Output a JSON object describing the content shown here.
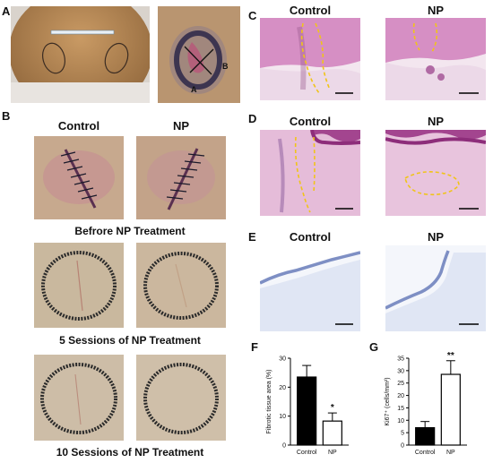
{
  "panels": {
    "A": {
      "letter": "A",
      "inset_labels": {
        "a": "A",
        "b": "B"
      }
    },
    "B": {
      "letter": "B",
      "col_control": "Control",
      "col_np": "NP",
      "row_captions": [
        "Befrore NP Treatment",
        "5 Sessions of NP Treatment",
        "10 Sessions of NP Treatment"
      ]
    },
    "C": {
      "letter": "C",
      "col_control": "Control",
      "col_np": "NP"
    },
    "D": {
      "letter": "D",
      "col_control": "Control",
      "col_np": "NP"
    },
    "E": {
      "letter": "E",
      "col_control": "Control",
      "col_np": "NP"
    },
    "F": {
      "letter": "F"
    },
    "G": {
      "letter": "G"
    }
  },
  "colors": {
    "he_stain": "#d68fc4",
    "dermis": "#e9c6e0",
    "ihc": "#c8d3ea",
    "skin": "#c9a07a",
    "scar_outline": "#4a3a3a",
    "annotation": "#f0c419",
    "bar_fill": "#000000"
  },
  "chart_data": [
    {
      "type": "bar",
      "ylabel": "Fibrotic tissue area (%)",
      "categories": [
        "Control",
        "NP"
      ],
      "values": [
        23.5,
        8.3
      ],
      "errors": [
        4.0,
        2.8
      ],
      "fills": [
        "filled",
        "open"
      ],
      "ylim": [
        0,
        30
      ],
      "yticks": [
        "0",
        "10",
        "20",
        "30"
      ],
      "significance": "*"
    },
    {
      "type": "bar",
      "ylabel": "Ki67⁺ (cells/mm²)",
      "categories": [
        "Control",
        "NP"
      ],
      "values": [
        7,
        28.5
      ],
      "errors": [
        2.5,
        5.5
      ],
      "fills": [
        "filled",
        "open"
      ],
      "ylim": [
        0,
        35
      ],
      "yticks": [
        "0",
        "5",
        "10",
        "15",
        "20",
        "25",
        "30",
        "35"
      ],
      "significance": "**"
    }
  ]
}
